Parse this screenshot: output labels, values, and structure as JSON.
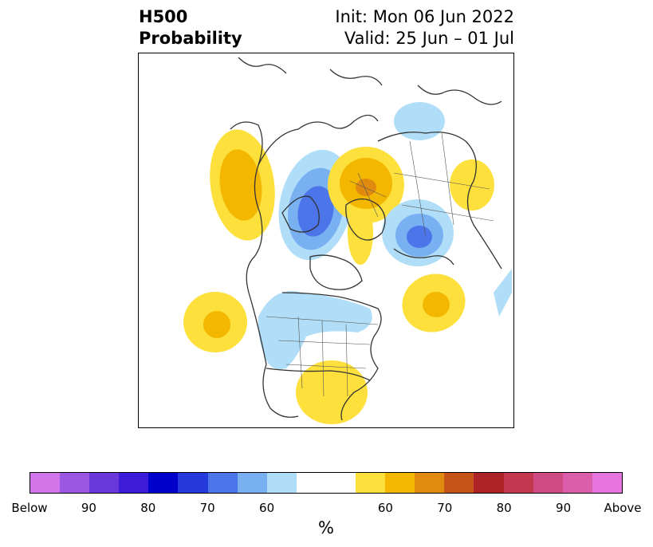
{
  "title": {
    "left_line1": "H500",
    "left_line2": "Probability",
    "right_line1": "Init: Mon 06 Jun 2022",
    "right_line2": "Valid: 25 Jun – 01 Jul"
  },
  "colorbar": {
    "units": "%",
    "colors": [
      "#d275e8",
      "#9b57e1",
      "#6a37db",
      "#3d1cd9",
      "#0000cd",
      "#2538dc",
      "#4b75e8",
      "#78b0f2",
      "#b0def8",
      "#ffffff",
      "#ffffff",
      "#fde03c",
      "#f4b700",
      "#e08a10",
      "#c65318",
      "#ae2325",
      "#c3374f",
      "#cf4b84",
      "#db5eab",
      "#e775df"
    ],
    "tick_labels": [
      "Below",
      "90",
      "80",
      "70",
      "60",
      "60",
      "70",
      "80",
      "90",
      "Above"
    ]
  },
  "map": {
    "legend_colors": {
      "below_60": "#b0def8",
      "below_70": "#78b0f2",
      "below_80": "#4b75e8",
      "above_60": "#fde03c",
      "above_70": "#f4b700",
      "above_80": "#e08a10"
    }
  }
}
